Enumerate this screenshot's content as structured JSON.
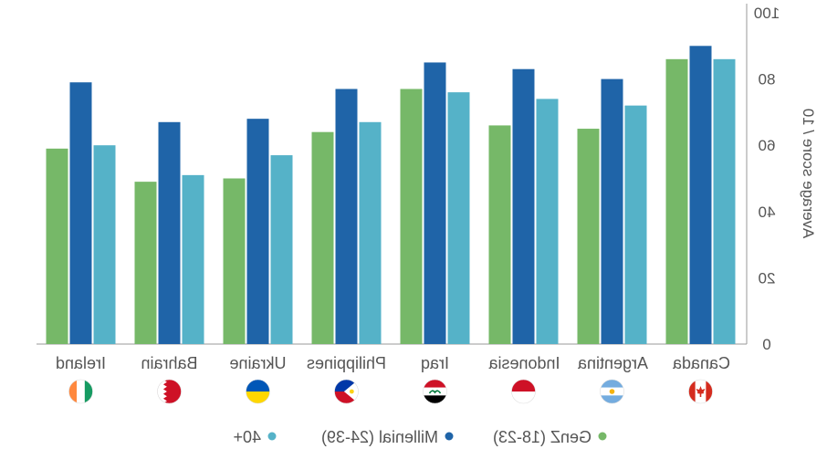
{
  "chart_data": {
    "type": "bar",
    "categories": [
      "Ireland",
      "Bahrain",
      "Ukraine",
      "Philippines",
      "Iraq",
      "Indonesia",
      "Argentina",
      "Canada"
    ],
    "series": [
      {
        "name": "GenZ (18-23)",
        "color": "#76b868",
        "values": [
          59,
          49,
          50,
          64,
          77,
          66,
          65,
          86
        ]
      },
      {
        "name": "Millenial (24-39)",
        "color": "#1f64a8",
        "values": [
          79,
          67,
          68,
          77,
          85,
          83,
          80,
          90
        ]
      },
      {
        "name": "40+",
        "color": "#55b2c8",
        "values": [
          60,
          51,
          57,
          67,
          76,
          74,
          72,
          86
        ]
      }
    ],
    "ylabel": "Average score / 10",
    "ylim": [
      0,
      100
    ],
    "yticks": [
      0,
      20,
      40,
      60,
      80,
      100
    ],
    "orientation": "mirrored-horizontally",
    "legend_position": "bottom"
  },
  "flags": [
    {
      "country": "Ireland",
      "icon": "ireland-flag-icon",
      "colors": [
        "#169b62",
        "#ffffff",
        "#ff883e"
      ]
    },
    {
      "country": "Bahrain",
      "icon": "bahrain-flag-icon",
      "colors": [
        "#ce1126",
        "#ffffff"
      ]
    },
    {
      "country": "Ukraine",
      "icon": "ukraine-flag-icon",
      "colors": [
        "#0057b7",
        "#ffd700"
      ]
    },
    {
      "country": "Philippines",
      "icon": "philippines-flag-icon",
      "colors": [
        "#0038a8",
        "#ce1126",
        "#ffffff",
        "#fcd116"
      ]
    },
    {
      "country": "Iraq",
      "icon": "iraq-flag-icon",
      "colors": [
        "#ce1126",
        "#ffffff",
        "#000000",
        "#007a3d"
      ]
    },
    {
      "country": "Indonesia",
      "icon": "indonesia-flag-icon",
      "colors": [
        "#ce1126",
        "#ffffff"
      ]
    },
    {
      "country": "Argentina",
      "icon": "argentina-flag-icon",
      "colors": [
        "#74acdf",
        "#ffffff",
        "#f6b40e"
      ]
    },
    {
      "country": "Canada",
      "icon": "canada-flag-icon",
      "colors": [
        "#d52b1e",
        "#ffffff"
      ]
    }
  ]
}
